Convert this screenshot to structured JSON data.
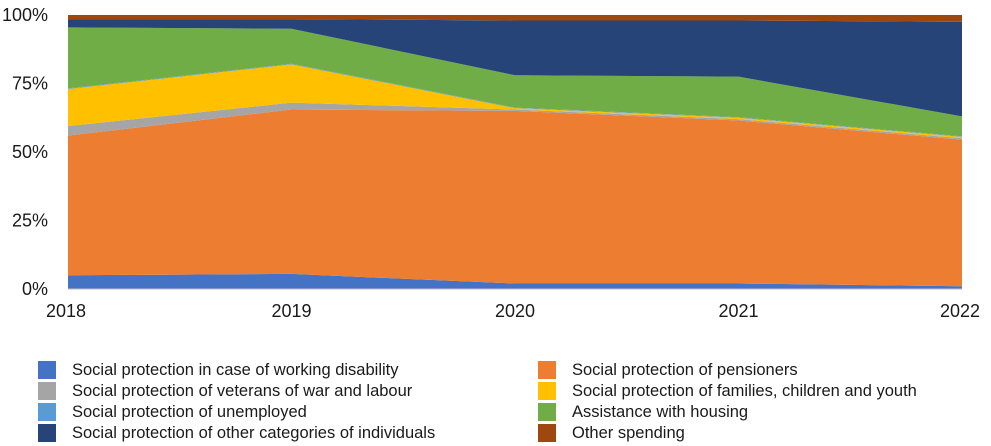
{
  "chart_data": {
    "type": "area",
    "stacked": true,
    "normalized": true,
    "categories": [
      "2018",
      "2019",
      "2020",
      "2021",
      "2022"
    ],
    "y_ticks": [
      "0%",
      "25%",
      "50%",
      "75%",
      "100%"
    ],
    "ylim": [
      0,
      100
    ],
    "grid": false,
    "legend_position": "bottom",
    "series": [
      {
        "name": "Social protection in case of working disability",
        "color": "#4472c4",
        "values": [
          5,
          5.5,
          2,
          2,
          1
        ]
      },
      {
        "name": "Social protection of pensioners",
        "color": "#ed7d31",
        "values": [
          51,
          60,
          63,
          59.5,
          53.5
        ]
      },
      {
        "name": "Social protection of veterans of war and labour",
        "color": "#a5a5a5",
        "values": [
          3.5,
          2.5,
          0.5,
          0.5,
          0.5
        ]
      },
      {
        "name": "Social protection of families, children and youth",
        "color": "#ffc000",
        "values": [
          13.5,
          14,
          0.5,
          0.5,
          0.5
        ]
      },
      {
        "name": "Social protection of unemployed",
        "color": "#5b9bd5",
        "values": [
          0.2,
          0.2,
          0.2,
          0.2,
          0.2
        ]
      },
      {
        "name": "Assistance with housing",
        "color": "#70ad47",
        "values": [
          22.3,
          12.8,
          11.8,
          14.8,
          7.3
        ]
      },
      {
        "name": "Social protection of other categories of individuals",
        "color": "#264478",
        "values": [
          3,
          3.5,
          20,
          20.5,
          34.5
        ]
      },
      {
        "name": "Other spending",
        "color": "#9e480e",
        "values": [
          1.5,
          1.5,
          2,
          2,
          2.5
        ]
      }
    ]
  },
  "legend": {
    "left_column": [
      {
        "label": "Social protection in case of working disability",
        "color": "#4472c4"
      },
      {
        "label": "Social protection of veterans of war and labour",
        "color": "#a5a5a5"
      },
      {
        "label": "Social protection of unemployed",
        "color": "#5b9bd5"
      },
      {
        "label": "Social protection of other categories of individuals",
        "color": "#264478"
      }
    ],
    "right_column": [
      {
        "label": "Social protection of pensioners",
        "color": "#ed7d31"
      },
      {
        "label": "Social protection of families, children and youth",
        "color": "#ffc000"
      },
      {
        "label": "Assistance with housing",
        "color": "#70ad47"
      },
      {
        "label": "Other spending",
        "color": "#9e480e"
      }
    ]
  }
}
